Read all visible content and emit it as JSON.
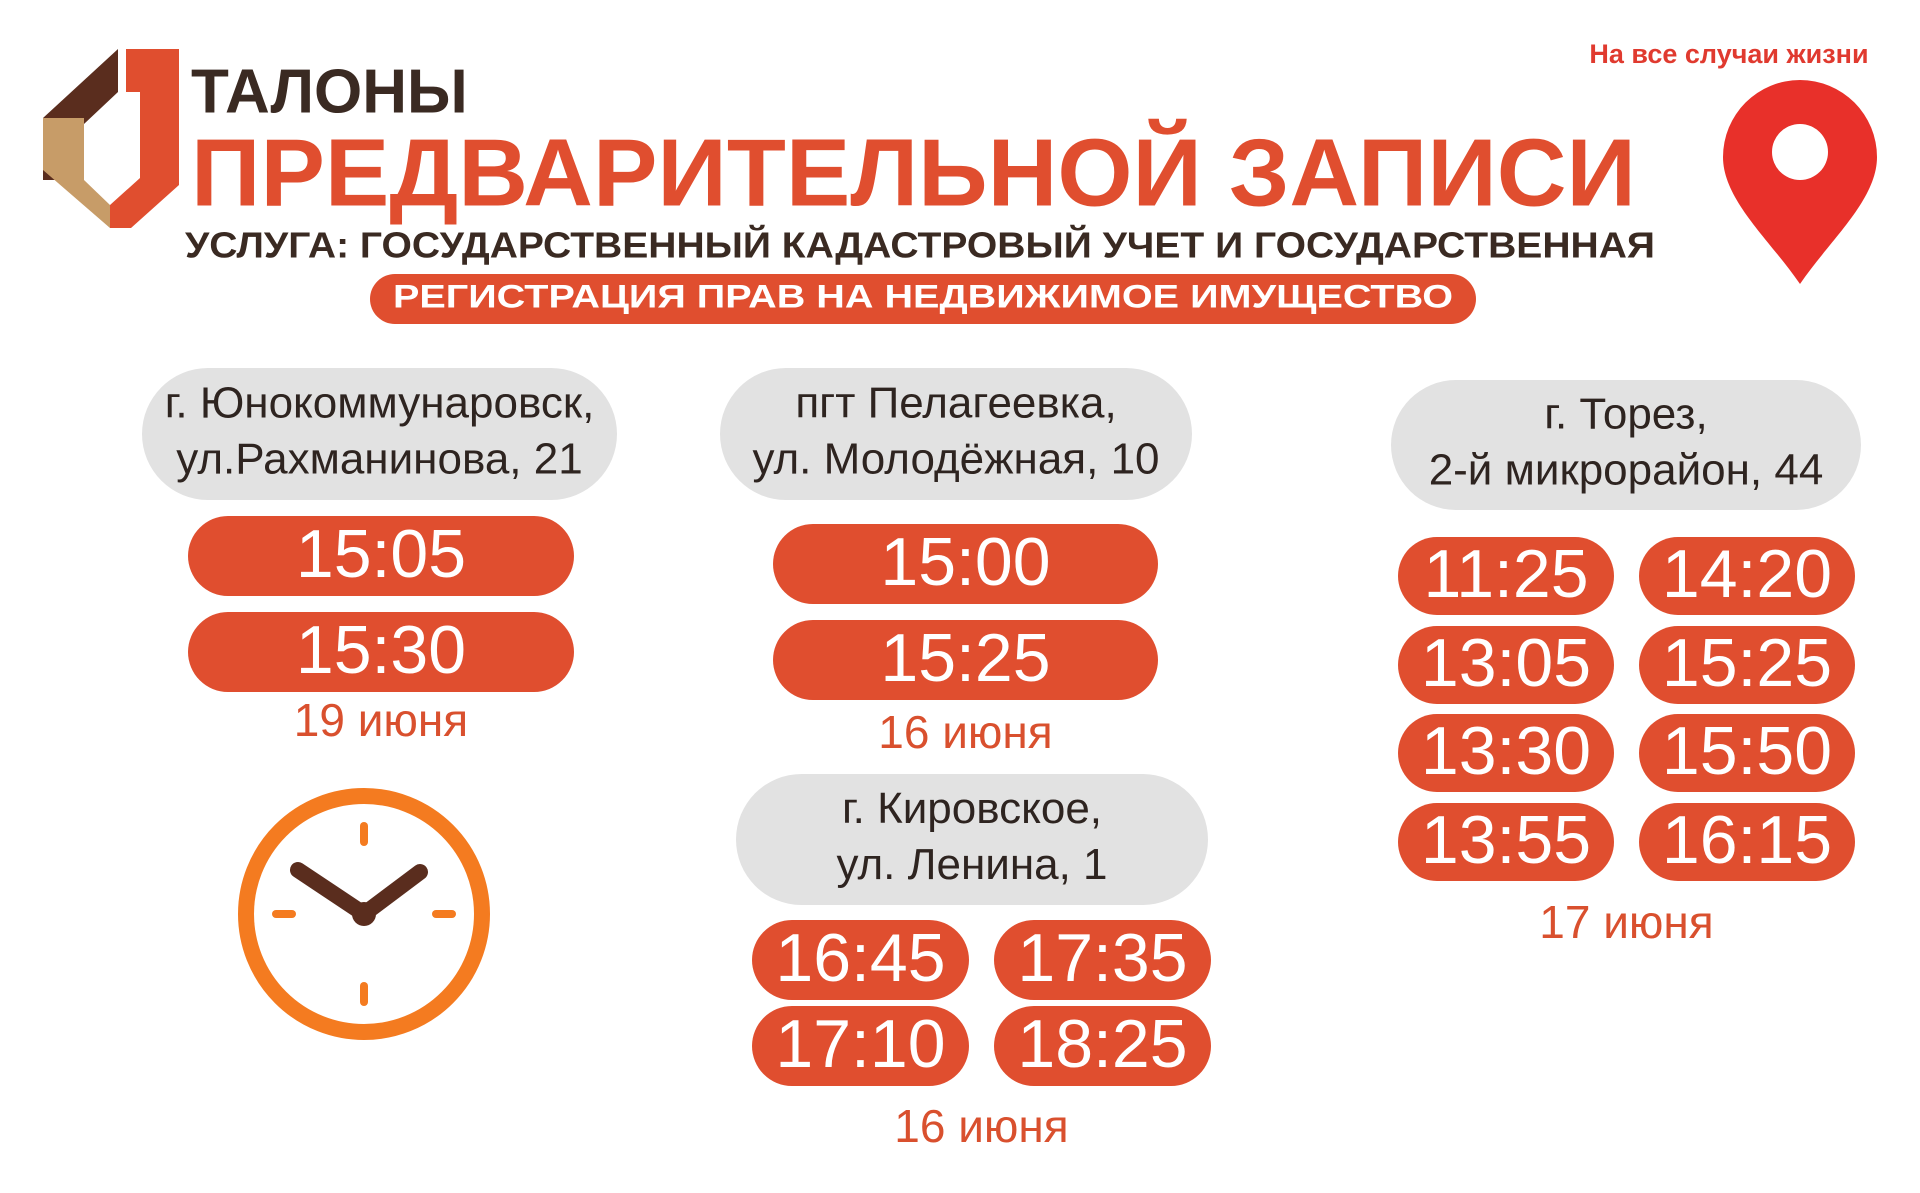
{
  "header": {
    "title_line1": "ТАЛОНЫ",
    "title_line2": "ПРЕДВАРИТЕЛЬНОЙ ЗАПИСИ",
    "service_line1": "УСЛУГА: ГОСУДАРСТВЕННЫЙ КАДАСТРОВЫЙ УЧЕТ И ГОСУДАРСТВЕННАЯ",
    "service_line2": "РЕГИСТРАЦИЯ ПРАВ НА НЕДВИЖИМОЕ ИМУЩЕСТВО",
    "tagline": "На все случаи жизни"
  },
  "locations": [
    {
      "address": [
        "г. Юнокоммунаровск,",
        "ул.Рахманинова, 21"
      ],
      "times": [
        "15:05",
        "15:30"
      ],
      "date": "19 июня"
    },
    {
      "address": [
        "пгт Пелагеевка,",
        "ул. Молодёжная, 10"
      ],
      "times": [
        "15:00",
        "15:25"
      ],
      "date": "16 июня"
    },
    {
      "address": [
        "г. Кировское,",
        "ул. Ленина, 1"
      ],
      "times": [
        "16:45",
        "17:35",
        "17:10",
        "18:25"
      ],
      "date": "16 июня"
    },
    {
      "address": [
        "г. Торез,",
        "2-й микрорайон, 44"
      ],
      "times": [
        "11:25",
        "14:20",
        "13:05",
        "15:25",
        "13:30",
        "15:50",
        "13:55",
        "16:15"
      ],
      "date": "17 июня"
    }
  ]
}
